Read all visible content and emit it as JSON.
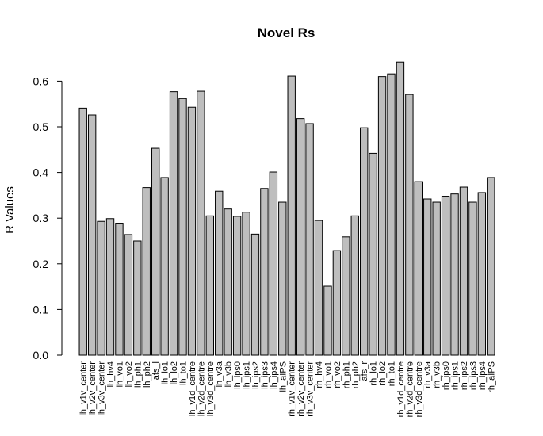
{
  "chart_data": {
    "type": "bar",
    "title": "Novel Rs",
    "xlabel": "",
    "ylabel": "R Values",
    "ylim": [
      0,
      0.65
    ],
    "yticks": [
      "0.0",
      "0.1",
      "0.2",
      "0.3",
      "0.4",
      "0.5",
      "0.6"
    ],
    "grid": false,
    "bar_color": "#bebebe",
    "categories": [
      "lh_v1v_center",
      "lh_v2v_center",
      "lh_v3v_center",
      "lh_hv4",
      "lh_vo1",
      "lh_vo2",
      "lh_ph1",
      "lh_ph2",
      "afs_l",
      "lh_lo1",
      "lh_lo2",
      "lh_to1",
      "lh_v1d_centre",
      "lh_v2d_centre",
      "lh_v3d_centre",
      "lh_v3a",
      "lh_v3b",
      "lh_ips0",
      "lh_ips1",
      "lh_ips2",
      "lh_ips3",
      "lh_ips4",
      "lh_aIPS",
      "rh_v1v_center",
      "rh_v2v_center",
      "rh_v3v_center",
      "rh_hv4",
      "rh_vo1",
      "rh_vo2",
      "rh_ph1",
      "rh_ph2",
      "afs_r",
      "rh_lo1",
      "rh_lo2",
      "rh_to1",
      "rh_v1d_centre",
      "rh_v2d_centre",
      "rh_v3d_centre",
      "rh_v3a",
      "rh_v3b",
      "rh_ips0",
      "rh_ips1",
      "rh_ips2",
      "rh_ips3",
      "rh_ips4",
      "rh_aIPS"
    ],
    "values": [
      0.541,
      0.526,
      0.293,
      0.299,
      0.289,
      0.264,
      0.25,
      0.367,
      0.453,
      0.389,
      0.577,
      0.562,
      0.543,
      0.578,
      0.305,
      0.359,
      0.32,
      0.304,
      0.313,
      0.265,
      0.365,
      0.401,
      0.335,
      0.611,
      0.518,
      0.507,
      0.295,
      0.151,
      0.229,
      0.259,
      0.305,
      0.498,
      0.442,
      0.61,
      0.616,
      0.642,
      0.571,
      0.38,
      0.342,
      0.335,
      0.348,
      0.353,
      0.368,
      0.335,
      0.356,
      0.389
    ]
  }
}
